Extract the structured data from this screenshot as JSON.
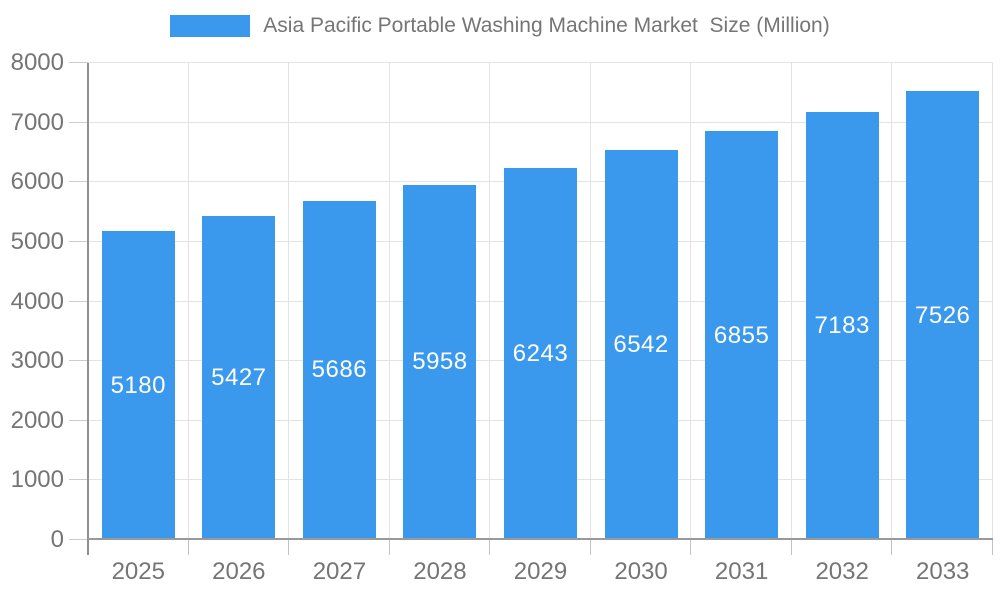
{
  "legend": {
    "label": "Asia Pacific Portable Washing Machine Market  Size (Million)"
  },
  "chart_data": {
    "type": "bar",
    "title": "Asia Pacific Portable Washing Machine Market  Size (Million)",
    "categories": [
      "2025",
      "2026",
      "2027",
      "2028",
      "2029",
      "2030",
      "2031",
      "2032",
      "2033"
    ],
    "values": [
      5180,
      5427,
      5686,
      5958,
      6243,
      6542,
      6855,
      7183,
      7526
    ],
    "xlabel": "",
    "ylabel": "",
    "ylim": [
      0,
      8000
    ],
    "ytick_step": 1000,
    "ytick_labels": [
      "0",
      "1000",
      "2000",
      "3000",
      "4000",
      "5000",
      "6000",
      "7000",
      "8000"
    ],
    "grid": true,
    "legend_position": "top",
    "colors": {
      "bar": "#3A99EC",
      "value_label": "#FFFFFF",
      "axis_text": "#757575",
      "gridline": "#E3E3E3",
      "axis_line": "#8F8F8F",
      "baseline": "#999999"
    }
  }
}
